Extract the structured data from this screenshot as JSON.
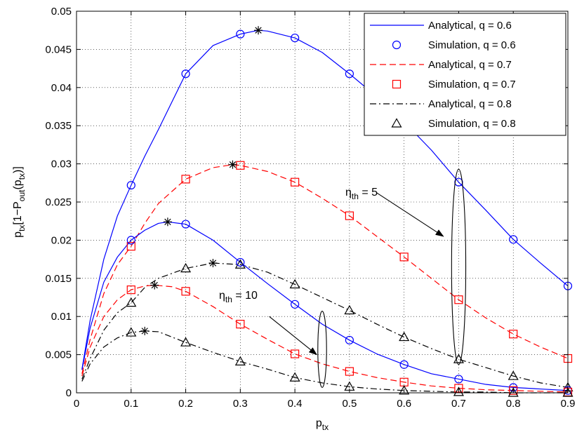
{
  "chart_data": {
    "type": "line",
    "xlabel": {
      "main": "p",
      "sub": "tx"
    },
    "ylabel": {
      "p1": "p",
      "s1": "tx",
      "p2": "[1−P",
      "s2": "out",
      "p3": "(p",
      "s3": "tx",
      "p4": ")]"
    },
    "xlim": [
      0,
      0.9
    ],
    "ylim": [
      0,
      0.05
    ],
    "xticks": [
      "0",
      "0.1",
      "0.2",
      "0.3",
      "0.4",
      "0.5",
      "0.6",
      "0.7",
      "0.8",
      "0.9"
    ],
    "yticks": [
      "0",
      "0.005",
      "0.01",
      "0.015",
      "0.02",
      "0.025",
      "0.03",
      "0.035",
      "0.04",
      "0.045",
      "0.05"
    ],
    "grid": true,
    "legend_position": "top-right",
    "series": [
      {
        "name": "Analytical, q = 0.6",
        "style": "solid",
        "color": "#0000ff",
        "marker": "none"
      },
      {
        "name": "Simulation, q = 0.6",
        "style": "none",
        "color": "#0000ff",
        "marker": "circle"
      },
      {
        "name": "Analytical, q = 0.7",
        "style": "dashed",
        "color": "#ff0000",
        "marker": "none"
      },
      {
        "name": "Simulation, q = 0.7",
        "style": "none",
        "color": "#ff0000",
        "marker": "square"
      },
      {
        "name": "Analytical, q = 0.8",
        "style": "dashdot",
        "color": "#000000",
        "marker": "none"
      },
      {
        "name": "Simulation, q = 0.8",
        "style": "none",
        "color": "#000000",
        "marker": "triangle"
      }
    ],
    "curves": [
      {
        "group": "eta5",
        "q": 0.6,
        "color": "#0000ff",
        "style": "solid",
        "x": [
          0.01,
          0.025,
          0.05,
          0.075,
          0.1,
          0.125,
          0.15,
          0.2,
          0.25,
          0.3,
          0.333,
          0.35,
          0.4,
          0.45,
          0.5,
          0.55,
          0.6,
          0.65,
          0.7,
          0.75,
          0.8,
          0.85,
          0.9
        ],
        "y": [
          0.0031,
          0.0095,
          0.0175,
          0.0232,
          0.0272,
          0.031,
          0.0345,
          0.0418,
          0.0455,
          0.047,
          0.0475,
          0.0474,
          0.0465,
          0.0446,
          0.0418,
          0.0388,
          0.0355,
          0.0318,
          0.0276,
          0.0239,
          0.0201,
          0.017,
          0.014
        ],
        "markers_x": [
          0.1,
          0.2,
          0.3,
          0.4,
          0.5,
          0.6,
          0.7,
          0.8,
          0.9
        ],
        "markers_y": [
          0.0272,
          0.0418,
          0.047,
          0.0465,
          0.0418,
          0.0355,
          0.0276,
          0.0201,
          0.014
        ],
        "marker": "circle",
        "star": [
          0.333,
          0.0475
        ]
      },
      {
        "group": "eta5",
        "q": 0.7,
        "color": "#ff0000",
        "style": "dashed",
        "x": [
          0.01,
          0.025,
          0.05,
          0.075,
          0.1,
          0.125,
          0.15,
          0.2,
          0.25,
          0.286,
          0.3,
          0.35,
          0.4,
          0.45,
          0.5,
          0.55,
          0.6,
          0.65,
          0.7,
          0.75,
          0.8,
          0.85,
          0.9
        ],
        "y": [
          0.0025,
          0.007,
          0.013,
          0.0168,
          0.0192,
          0.0222,
          0.0248,
          0.028,
          0.0295,
          0.0299,
          0.0298,
          0.029,
          0.0276,
          0.0255,
          0.0232,
          0.0205,
          0.0178,
          0.015,
          0.0122,
          0.0098,
          0.0077,
          0.006,
          0.0045
        ],
        "markers_x": [
          0.1,
          0.2,
          0.3,
          0.4,
          0.5,
          0.6,
          0.7,
          0.8,
          0.9
        ],
        "markers_y": [
          0.0192,
          0.028,
          0.0298,
          0.0276,
          0.0232,
          0.0178,
          0.0122,
          0.0077,
          0.0045
        ],
        "marker": "square",
        "star": [
          0.286,
          0.0299
        ]
      },
      {
        "group": "eta5",
        "q": 0.8,
        "color": "#000000",
        "style": "dashdot",
        "x": [
          0.01,
          0.025,
          0.05,
          0.075,
          0.1,
          0.125,
          0.15,
          0.2,
          0.25,
          0.3,
          0.35,
          0.4,
          0.45,
          0.5,
          0.55,
          0.6,
          0.65,
          0.7,
          0.75,
          0.8,
          0.85,
          0.9
        ],
        "y": [
          0.0018,
          0.0045,
          0.0082,
          0.0105,
          0.0118,
          0.0138,
          0.015,
          0.0163,
          0.017,
          0.0168,
          0.0158,
          0.0142,
          0.0125,
          0.0108,
          0.009,
          0.0073,
          0.0058,
          0.0044,
          0.0033,
          0.0022,
          0.0013,
          0.0007
        ],
        "markers_x": [
          0.1,
          0.2,
          0.3,
          0.4,
          0.5,
          0.6,
          0.7,
          0.8,
          0.9
        ],
        "markers_y": [
          0.0118,
          0.0163,
          0.0168,
          0.0142,
          0.0108,
          0.0073,
          0.0044,
          0.0022,
          0.0007
        ],
        "marker": "triangle",
        "star": [
          0.25,
          0.017
        ]
      },
      {
        "group": "eta10",
        "q": 0.6,
        "color": "#0000ff",
        "style": "solid",
        "x": [
          0.01,
          0.025,
          0.05,
          0.075,
          0.1,
          0.125,
          0.15,
          0.167,
          0.2,
          0.25,
          0.3,
          0.35,
          0.4,
          0.45,
          0.5,
          0.55,
          0.6,
          0.65,
          0.7,
          0.75,
          0.8,
          0.85,
          0.9
        ],
        "y": [
          0.003,
          0.0085,
          0.0145,
          0.0178,
          0.02,
          0.0213,
          0.0222,
          0.0224,
          0.0221,
          0.02,
          0.0171,
          0.0143,
          0.0116,
          0.009,
          0.0069,
          0.0051,
          0.0037,
          0.0025,
          0.0018,
          0.0011,
          0.0007,
          0.0005,
          0.0003
        ],
        "markers_x": [
          0.1,
          0.2,
          0.3,
          0.4,
          0.5,
          0.6,
          0.7,
          0.8,
          0.9
        ],
        "markers_y": [
          0.02,
          0.0221,
          0.0171,
          0.0116,
          0.0069,
          0.0037,
          0.0018,
          0.0007,
          0.0003
        ],
        "marker": "circle",
        "star": [
          0.167,
          0.0224
        ]
      },
      {
        "group": "eta10",
        "q": 0.7,
        "color": "#ff0000",
        "style": "dashed",
        "x": [
          0.01,
          0.025,
          0.05,
          0.075,
          0.1,
          0.125,
          0.143,
          0.175,
          0.2,
          0.25,
          0.3,
          0.35,
          0.4,
          0.45,
          0.5,
          0.55,
          0.6,
          0.65,
          0.7,
          0.75,
          0.8,
          0.85,
          0.9
        ],
        "y": [
          0.0022,
          0.006,
          0.01,
          0.0122,
          0.0135,
          0.014,
          0.0141,
          0.0139,
          0.0133,
          0.0113,
          0.009,
          0.007,
          0.0051,
          0.0038,
          0.0028,
          0.002,
          0.0014,
          0.0009,
          0.0006,
          0.0004,
          0.0003,
          0.0002,
          0.0001
        ],
        "markers_x": [
          0.1,
          0.2,
          0.3,
          0.4,
          0.5,
          0.6,
          0.7,
          0.8,
          0.9
        ],
        "markers_y": [
          0.0135,
          0.0133,
          0.009,
          0.0051,
          0.0028,
          0.0014,
          0.0006,
          0.0003,
          0.0001
        ],
        "marker": "square",
        "star": [
          0.143,
          0.0141
        ]
      },
      {
        "group": "eta10",
        "q": 0.8,
        "color": "#000000",
        "style": "dashdot",
        "x": [
          0.01,
          0.025,
          0.05,
          0.075,
          0.1,
          0.125,
          0.15,
          0.2,
          0.25,
          0.3,
          0.35,
          0.4,
          0.45,
          0.5,
          0.55,
          0.6,
          0.65,
          0.7,
          0.75,
          0.8,
          0.85,
          0.9
        ],
        "y": [
          0.0015,
          0.0038,
          0.006,
          0.0072,
          0.0079,
          0.0081,
          0.008,
          0.0066,
          0.0053,
          0.0041,
          0.0031,
          0.002,
          0.0013,
          0.0008,
          0.0005,
          0.0003,
          0.0002,
          0.0001,
          0.0001,
          0.0,
          0.0,
          0.0
        ],
        "markers_x": [
          0.1,
          0.2,
          0.3,
          0.4,
          0.5,
          0.6,
          0.7,
          0.8,
          0.9
        ],
        "markers_y": [
          0.0079,
          0.0066,
          0.0041,
          0.002,
          0.0008,
          0.0003,
          0.0001,
          0.0,
          0.0
        ],
        "marker": "triangle",
        "star": [
          0.125,
          0.0081
        ]
      }
    ],
    "annotations": [
      {
        "label": "η",
        "sub": "th",
        "value": "= 5",
        "group": "eta5",
        "ellipse_center": [
          0.7,
          0.0165
        ],
        "ellipse_rx": 0.013,
        "ellipse_ry": 0.0128,
        "arrow_from": [
          0.55,
          0.0262
        ],
        "arrow_to": [
          0.672,
          0.0205
        ]
      },
      {
        "label": "η",
        "sub": "th",
        "value": "= 10",
        "group": "eta10",
        "ellipse_center": [
          0.45,
          0.0057
        ],
        "ellipse_rx": 0.008,
        "ellipse_ry": 0.005,
        "arrow_from": [
          0.353,
          0.01
        ],
        "arrow_to": [
          0.44,
          0.005
        ]
      }
    ]
  }
}
